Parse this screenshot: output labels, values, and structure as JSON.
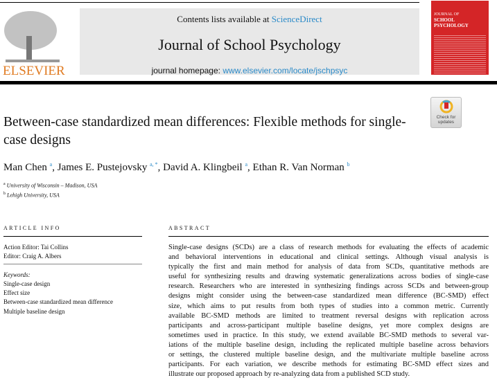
{
  "header": {
    "contents": "Contents lists available at ",
    "sciencedirect": "ScienceDirect",
    "journal_title": "Journal of School Psychology",
    "homepage_label": "journal homepage: ",
    "homepage_url": "www.elsevier.com/locate/jschpsyc",
    "publisher": "ELSEVIER",
    "cover_title_1": "JOURNAL OF",
    "cover_title_2": "SCHOOL PSYCHOLOGY",
    "accent_color": "#2a8ac8",
    "publisher_color": "#e07b22"
  },
  "badge": {
    "label": "Check for updates"
  },
  "article": {
    "title": "Between-case standardized mean differences: Flexible methods for single-case designs",
    "authors": [
      {
        "name": "Man Chen",
        "sup": "a"
      },
      {
        "name": "James E. Pustejovsky",
        "sup": "a, *"
      },
      {
        "name": "David A. Klingbeil",
        "sup": "a"
      },
      {
        "name": "Ethan R. Van Norman",
        "sup": "b"
      }
    ],
    "affiliations": [
      {
        "sup": "a",
        "text": "University of Wisconsin – Madison, USA"
      },
      {
        "sup": "b",
        "text": "Lehigh University, USA"
      }
    ]
  },
  "article_info": {
    "heading": "ARTICLE INFO",
    "action_editor": "Action Editor: Tai Collins",
    "editor": "Editor: Craig A. Albers",
    "keywords_label": "Keywords:",
    "keywords": [
      "Single-case design",
      "Effect size",
      "Between-case standardized mean difference",
      "Multiple baseline design"
    ]
  },
  "abstract": {
    "heading": "ABSTRACT",
    "lines": [
      "Single-case designs (SCDs) are a class of research methods for evaluating the effects of academic",
      "and behavioral interventions in educational and clinical settings. Although visual analysis is",
      "typically the first and main method for analysis of data from SCDs, quantitative methods are",
      "useful for synthesizing results and drawing systematic generalizations across bodies of single-case",
      "research. Researchers who are interested in synthesizing findings across SCDs and between-group",
      "designs might consider using the between-case standardized mean difference (BC-SMD) effect",
      "size, which aims to put results from both types of studies into a common metric. Currently",
      "available BC-SMD methods are limited to treatment reversal designs with replication across",
      "participants and across-participant multiple baseline designs, yet more complex designs are",
      "sometimes used in practice. In this study, we extend available BC-SMD methods to several var-",
      "iations of the multiple baseline design, including the replicated multiple baseline across behaviors",
      "or settings, the clustered multiple baseline design, and the multivariate multiple baseline across",
      "participants. For each variation, we describe methods for estimating BC-SMD effect sizes and",
      "illustrate our proposed approach by re-analyzing data from a published SCD study."
    ]
  }
}
